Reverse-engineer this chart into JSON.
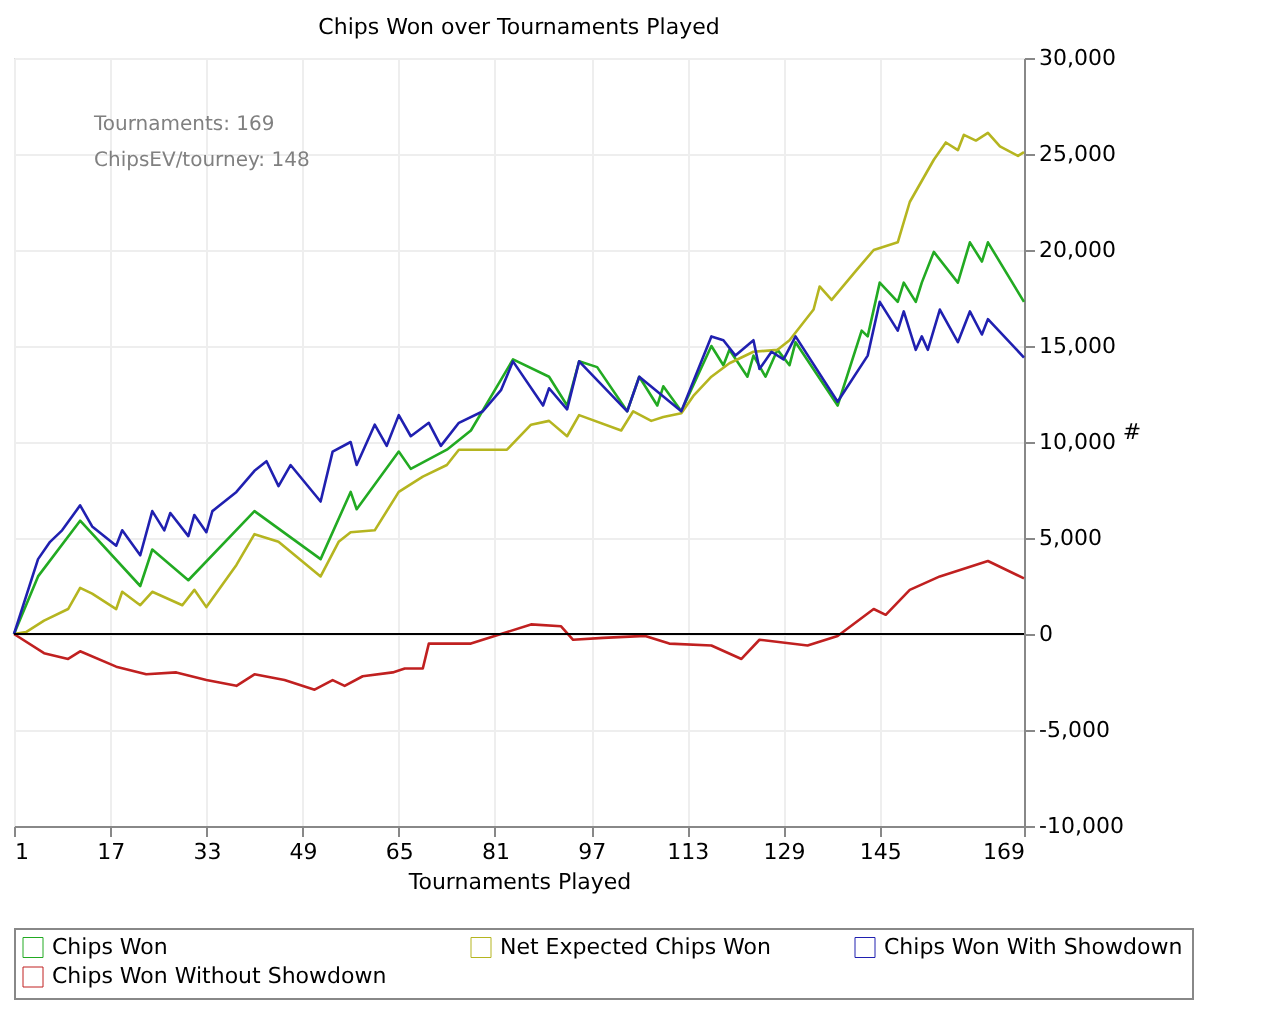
{
  "chart_data": {
    "type": "line",
    "title": "Chips Won over Tournaments Played",
    "xlabel": "Tournaments Played",
    "ylabel": "#",
    "xlim": [
      1,
      169
    ],
    "xticks": [
      1,
      17,
      33,
      49,
      65,
      81,
      97,
      113,
      129,
      145,
      169
    ],
    "ylim": [
      -10000,
      30000
    ],
    "yticks": [
      {
        "value": -10000,
        "label": "-10,000"
      },
      {
        "value": -5000,
        "label": "-5,000"
      },
      0,
      {
        "value": 5000,
        "label": "5,000"
      },
      {
        "value": 10000,
        "label": "10,000"
      },
      {
        "value": 15000,
        "label": "15,000"
      },
      {
        "value": 20000,
        "label": "20,000"
      },
      {
        "value": 25000,
        "label": "25,000"
      },
      {
        "value": 30000,
        "label": "30,000"
      }
    ],
    "grid": true,
    "legend": "bottom",
    "marker": "none",
    "line_style": "solid",
    "ref_lines": [
      {
        "axis": "y",
        "value": 0,
        "color": "#000000"
      }
    ],
    "annotations": [
      "Tournaments: 169",
      "ChipsEV/tourney: 148"
    ],
    "series": [
      {
        "name": "Chips Won",
        "color": "#22aa22",
        "x": [
          1,
          5,
          12,
          22,
          24,
          30,
          41,
          52,
          57,
          58,
          65,
          67,
          73,
          77,
          84,
          90,
          93,
          95,
          98,
          103,
          105,
          108,
          109,
          112,
          117,
          119,
          120,
          123,
          124,
          126,
          128,
          130,
          131,
          138,
          142,
          143,
          145,
          148,
          149,
          151,
          152,
          154,
          158,
          160,
          162,
          163,
          169
        ],
        "values": [
          0,
          3000,
          5900,
          2500,
          4400,
          2800,
          6400,
          3900,
          7400,
          6500,
          9500,
          8600,
          9600,
          10600,
          14300,
          13400,
          11900,
          14200,
          13900,
          11600,
          13400,
          11900,
          12900,
          11600,
          15000,
          14000,
          14800,
          13400,
          14500,
          13400,
          14800,
          14000,
          15200,
          11900,
          15800,
          15500,
          18300,
          17300,
          18300,
          17300,
          18300,
          19900,
          18300,
          20400,
          19400,
          20400,
          17300
        ]
      },
      {
        "name": "Net Expected Chips Won",
        "color": "#b5b520",
        "x": [
          1,
          3,
          6,
          10,
          12,
          14,
          18,
          19,
          22,
          24,
          29,
          31,
          33,
          38,
          41,
          45,
          52,
          55,
          57,
          61,
          65,
          69,
          73,
          75,
          79,
          83,
          87,
          90,
          93,
          95,
          102,
          104,
          107,
          109,
          112,
          114,
          117,
          120,
          124,
          128,
          130,
          134,
          135,
          137,
          141,
          144,
          148,
          150,
          154,
          156,
          158,
          159,
          161,
          163,
          165,
          168,
          169
        ],
        "values": [
          0,
          100,
          700,
          1300,
          2400,
          2100,
          1300,
          2200,
          1500,
          2200,
          1500,
          2300,
          1400,
          3600,
          5200,
          4800,
          3000,
          4800,
          5300,
          5400,
          7400,
          8200,
          8800,
          9600,
          9600,
          9600,
          10900,
          11100,
          10300,
          11400,
          10600,
          11600,
          11100,
          11300,
          11500,
          12400,
          13400,
          14100,
          14700,
          14800,
          15300,
          16900,
          18100,
          17400,
          18900,
          20000,
          20400,
          22500,
          24700,
          25600,
          25200,
          26000,
          25700,
          26100,
          25400,
          24900,
          25100
        ]
      },
      {
        "name": "Chips Won With Showdown",
        "color": "#2020b0",
        "x": [
          1,
          5,
          7,
          9,
          12,
          14,
          18,
          19,
          22,
          24,
          26,
          27,
          30,
          31,
          33,
          34,
          38,
          41,
          43,
          45,
          47,
          52,
          54,
          57,
          58,
          61,
          63,
          65,
          67,
          70,
          72,
          75,
          79,
          82,
          84,
          89,
          90,
          93,
          95,
          103,
          105,
          112,
          117,
          119,
          121,
          124,
          125,
          127,
          129,
          131,
          138,
          143,
          145,
          148,
          149,
          151,
          152,
          153,
          155,
          158,
          160,
          162,
          163,
          169
        ],
        "values": [
          0,
          3900,
          4800,
          5400,
          6700,
          5600,
          4600,
          5400,
          4100,
          6400,
          5400,
          6300,
          5100,
          6200,
          5300,
          6400,
          7400,
          8500,
          9000,
          7700,
          8800,
          6900,
          9500,
          10000,
          8800,
          10900,
          9800,
          11400,
          10300,
          11000,
          9800,
          11000,
          11600,
          12700,
          14200,
          11900,
          12800,
          11700,
          14200,
          11600,
          13400,
          11600,
          15500,
          15300,
          14500,
          15300,
          13800,
          14700,
          14300,
          15500,
          12100,
          14500,
          17300,
          15800,
          16800,
          14800,
          15500,
          14800,
          16900,
          15200,
          16800,
          15600,
          16400,
          14400
        ]
      },
      {
        "name": "Chips Won Without Showdown",
        "color": "#c02020",
        "x": [
          1,
          6,
          10,
          12,
          18,
          23,
          28,
          33,
          38,
          41,
          46,
          51,
          54,
          56,
          59,
          64,
          66,
          69,
          70,
          77,
          82,
          87,
          92,
          94,
          99,
          106,
          110,
          117,
          122,
          125,
          133,
          138,
          144,
          146,
          150,
          155,
          163,
          169
        ],
        "values": [
          0,
          -1000,
          -1300,
          -900,
          -1700,
          -2100,
          -2000,
          -2400,
          -2700,
          -2100,
          -2400,
          -2900,
          -2400,
          -2700,
          -2200,
          -2000,
          -1800,
          -1800,
          -500,
          -500,
          0,
          500,
          400,
          -300,
          -200,
          -100,
          -500,
          -600,
          -1300,
          -300,
          -600,
          -100,
          1300,
          1000,
          2300,
          3000,
          3800,
          2900
        ]
      }
    ]
  }
}
